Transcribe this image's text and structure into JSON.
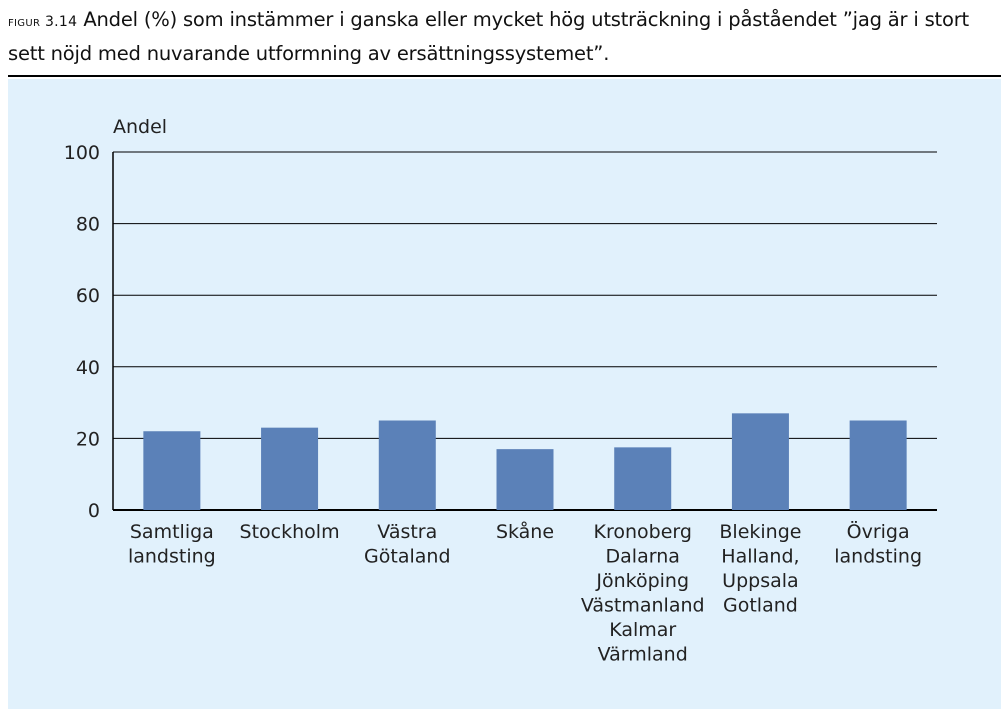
{
  "caption": {
    "figure_label": "FIGUR 3.14",
    "text": "Andel (%) som instämmer i ganska eller mycket hög utsträckning i påståendet ”jag är i stort sett nöjd med nuvarande utformning av ersättningssystemet”."
  },
  "chart_data": {
    "type": "bar",
    "title": "",
    "xlabel": "",
    "ylabel": "Andel",
    "ylim": [
      0,
      100
    ],
    "yticks": [
      0,
      20,
      40,
      60,
      80,
      100
    ],
    "grid": true,
    "categories": [
      [
        "Samtliga",
        "landsting"
      ],
      [
        "Stockholm"
      ],
      [
        "Västra",
        "Götaland"
      ],
      [
        "Skåne"
      ],
      [
        "Kronoberg",
        "Dalarna",
        "Jönköping",
        "Västmanland",
        "Kalmar",
        "Värmland"
      ],
      [
        "Blekinge",
        "Halland,",
        "Uppsala",
        "Gotland"
      ],
      [
        "Övriga",
        "landsting"
      ]
    ],
    "values": [
      22,
      23,
      25,
      17,
      17.5,
      27,
      25
    ],
    "colors": {
      "bar": "#5b81b8",
      "background": "#e1f1fc",
      "grid": "#000000"
    }
  }
}
